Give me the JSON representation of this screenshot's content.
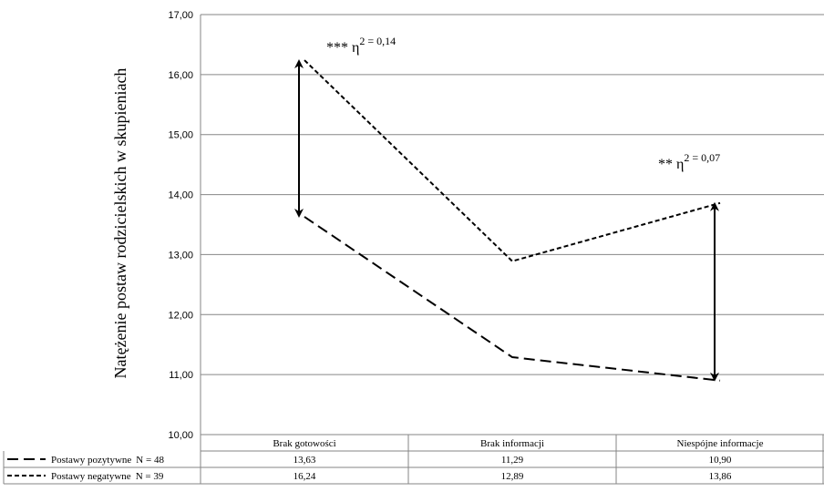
{
  "chart_data": {
    "type": "line",
    "ylabel": "Natężenie postaw rodzicielskich w skupieniach",
    "ylim": [
      10,
      17
    ],
    "yticks": [
      "10,00",
      "11,00",
      "12,00",
      "13,00",
      "14,00",
      "15,00",
      "16,00",
      "17,00"
    ],
    "grid": true,
    "categories": [
      "Brak gotowości",
      "Brak informacji",
      "Niespójne informacje"
    ],
    "series": [
      {
        "name": "Postawy pozytywne",
        "n_label": "N = 48",
        "values": [
          13.63,
          11.29,
          10.9
        ],
        "labels": [
          "13,63",
          "11,29",
          "10,90"
        ],
        "style": "long-dash"
      },
      {
        "name": "Postawy negatywne",
        "n_label": "N = 39",
        "values": [
          16.24,
          12.89,
          13.86
        ],
        "labels": [
          "16,24",
          "12,89",
          "13,86"
        ],
        "style": "short-dash"
      }
    ],
    "annotations": [
      {
        "category_index": 0,
        "stars": "***",
        "symbol": "η",
        "sup": "2",
        "value": "= 0,14"
      },
      {
        "category_index": 2,
        "stars": "**",
        "symbol": "η",
        "sup": "2",
        "value": "= 0,07"
      }
    ],
    "colors": {
      "lines": "#000000",
      "grid": "#868686"
    }
  }
}
